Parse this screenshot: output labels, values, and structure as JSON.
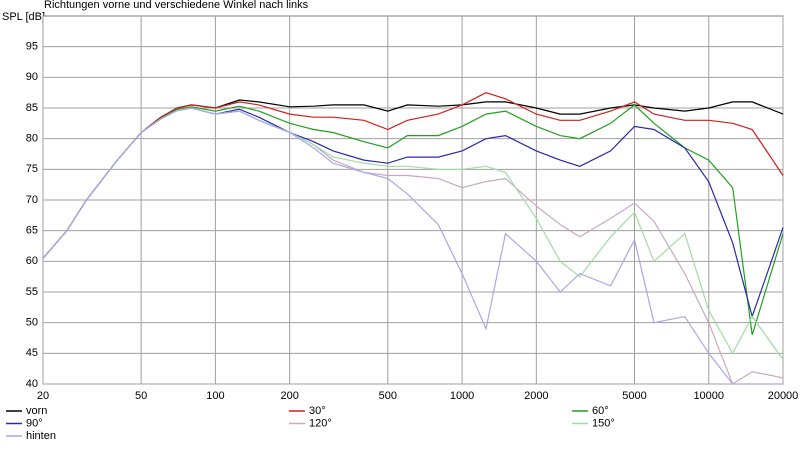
{
  "chart_data": {
    "type": "line",
    "title": "Richtungen vorne und verschiedene Winkel nach links",
    "y_label": "SPL [dB]",
    "log_x": true,
    "grid": true,
    "xlim": [
      20,
      20000
    ],
    "ylim": [
      40,
      100
    ],
    "xticks": [
      20,
      50,
      100,
      200,
      500,
      1000,
      2000,
      5000,
      10000,
      20000
    ],
    "yticks": [
      40,
      45,
      50,
      55,
      60,
      65,
      70,
      75,
      80,
      85,
      90,
      95
    ],
    "x": [
      20,
      25,
      30,
      40,
      50,
      60,
      70,
      80,
      100,
      125,
      150,
      200,
      250,
      300,
      400,
      500,
      600,
      800,
      1000,
      1250,
      1500,
      2000,
      2500,
      3000,
      4000,
      5000,
      6000,
      8000,
      10000,
      12500,
      15000,
      20000
    ],
    "series": [
      {
        "name": "vorn",
        "color": "#000000",
        "values": [
          60.5,
          65,
          70,
          76.5,
          81,
          83.5,
          85,
          85.5,
          85,
          86.3,
          86,
          85.2,
          85.3,
          85.5,
          85.5,
          84.5,
          85.5,
          85.3,
          85.5,
          86,
          86,
          85,
          84,
          84,
          85,
          85.5,
          85,
          84.5,
          85,
          86,
          86,
          84
        ]
      },
      {
        "name": "30°",
        "color": "#d02020",
        "values": [
          60.5,
          65,
          70,
          76.5,
          81,
          83.5,
          85,
          85.5,
          85,
          86,
          85.5,
          84,
          83.5,
          83.5,
          83,
          81.5,
          83,
          84,
          85.5,
          87.5,
          86.5,
          84,
          83,
          83,
          84.5,
          86,
          84,
          83,
          83,
          82.5,
          81.5,
          74
        ]
      },
      {
        "name": "60°",
        "color": "#20a020",
        "values": [
          60.5,
          65,
          70,
          76.5,
          81,
          83.3,
          84.8,
          85.2,
          84.5,
          85.3,
          84.5,
          82.5,
          81.5,
          81,
          79.5,
          78.5,
          80.5,
          80.5,
          82,
          84,
          84.5,
          82,
          80.5,
          80,
          82.5,
          85.5,
          82.5,
          78.5,
          76.5,
          72,
          48,
          64.5
        ]
      },
      {
        "name": "90°",
        "color": "#2828b0",
        "values": [
          60.5,
          65,
          70,
          76.5,
          81,
          83.2,
          84.6,
          85,
          84,
          84.8,
          83.5,
          81,
          79.5,
          78,
          76.5,
          76,
          77,
          77,
          78,
          80,
          80.5,
          78,
          76.5,
          75.5,
          78,
          82,
          81.5,
          78.5,
          73,
          63,
          51,
          65.5
        ]
      },
      {
        "name": "120°",
        "color": "#c8a8c0",
        "values": [
          60.5,
          65,
          70,
          76.5,
          81,
          83.2,
          84.6,
          85,
          84,
          84.5,
          83,
          81,
          79,
          76.5,
          74.5,
          74,
          74,
          73.5,
          72,
          73,
          73.5,
          69,
          66,
          64,
          67,
          69.5,
          66.5,
          58,
          50,
          40,
          42,
          41
        ]
      },
      {
        "name": "150°",
        "color": "#a0dca0",
        "values": [
          60.5,
          65,
          70,
          76.5,
          81,
          83.2,
          84.6,
          85,
          84,
          84.5,
          83,
          81,
          79,
          77,
          76,
          75.5,
          75.5,
          75,
          75,
          75.5,
          74.5,
          67,
          60,
          57.5,
          64,
          68,
          60,
          64.5,
          52,
          45,
          51,
          44
        ]
      },
      {
        "name": "hinten",
        "color": "#a8a8e8",
        "values": [
          60.5,
          65,
          70,
          76.5,
          81,
          83.2,
          84.6,
          85,
          84,
          84.5,
          83,
          81,
          78.5,
          76,
          74.5,
          73.5,
          71,
          66,
          58,
          49,
          64.5,
          60,
          55,
          58,
          56,
          63.5,
          50,
          51,
          45,
          40,
          40,
          40
        ]
      }
    ]
  }
}
